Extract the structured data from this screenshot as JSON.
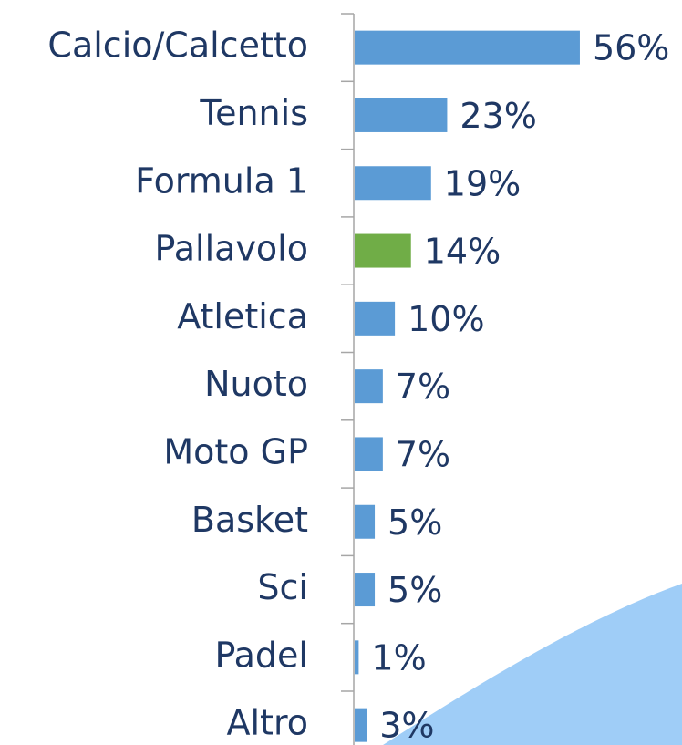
{
  "chart_data": {
    "type": "bar",
    "orientation": "horizontal",
    "categories": [
      "Calcio/Calcetto",
      "Tennis",
      "Formula 1",
      "Pallavolo",
      "Atletica",
      "Nuoto",
      "Moto GP",
      "Basket",
      "Sci",
      "Padel",
      "Altro"
    ],
    "values": [
      56,
      23,
      19,
      14,
      10,
      7,
      7,
      5,
      5,
      1,
      3
    ],
    "value_labels": [
      "56%",
      "23%",
      "19%",
      "14%",
      "10%",
      "7%",
      "7%",
      "5%",
      "5%",
      "1%",
      "3%"
    ],
    "colors": [
      "#5b9bd5",
      "#5b9bd5",
      "#5b9bd5",
      "#70ad47",
      "#5b9bd5",
      "#5b9bd5",
      "#5b9bd5",
      "#5b9bd5",
      "#5b9bd5",
      "#5b9bd5",
      "#5b9bd5"
    ]
  }
}
